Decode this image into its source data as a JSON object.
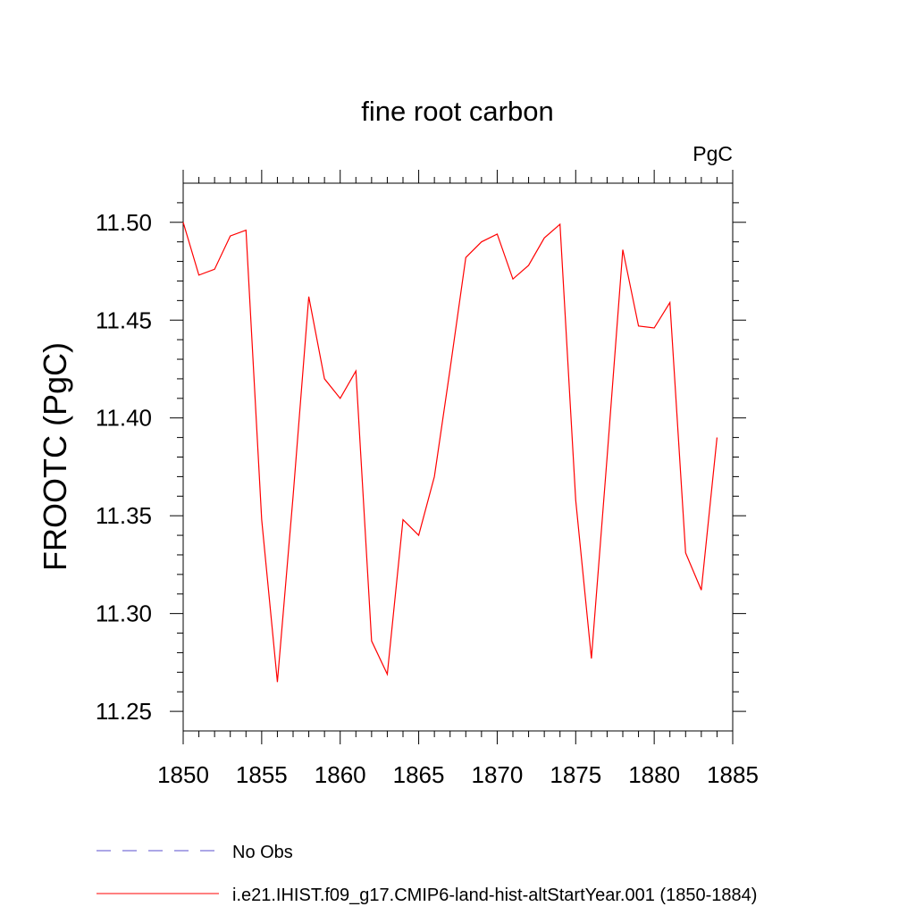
{
  "chart_data": {
    "type": "line",
    "title": "fine root carbon",
    "units_label": "PgC",
    "xlabel": "",
    "ylabel": "FROOTC  (PgC)",
    "xlim": [
      1850,
      1885
    ],
    "ylim": [
      11.24,
      11.52
    ],
    "x_ticks": [
      1850,
      1855,
      1860,
      1865,
      1870,
      1875,
      1880,
      1885
    ],
    "y_ticks": [
      11.25,
      11.3,
      11.35,
      11.4,
      11.45,
      11.5
    ],
    "y_tick_labels": [
      "11.25",
      "11.30",
      "11.35",
      "11.40",
      "11.45",
      "11.50"
    ],
    "grid": false,
    "legend_position": "bottom-left",
    "series": [
      {
        "name": "No Obs",
        "color": "#5a4fcf",
        "dash": "dashed",
        "x": [],
        "values": []
      },
      {
        "name": "i.e21.IHIST.f09_g17.CMIP6-land-hist-altStartYear.001 (1850-1884)",
        "color": "#ff0000",
        "dash": "solid",
        "x": [
          1850,
          1851,
          1852,
          1853,
          1854,
          1855,
          1856,
          1857,
          1858,
          1859,
          1860,
          1861,
          1862,
          1863,
          1864,
          1865,
          1866,
          1867,
          1868,
          1869,
          1870,
          1871,
          1872,
          1873,
          1874,
          1875,
          1876,
          1877,
          1878,
          1879,
          1880,
          1881,
          1882,
          1883,
          1884
        ],
        "values": [
          11.5,
          11.473,
          11.476,
          11.493,
          11.496,
          11.348,
          11.265,
          11.36,
          11.462,
          11.42,
          11.41,
          11.424,
          11.286,
          11.269,
          11.348,
          11.34,
          11.37,
          11.425,
          11.482,
          11.49,
          11.494,
          11.471,
          11.478,
          11.492,
          11.499,
          11.358,
          11.277,
          11.38,
          11.486,
          11.447,
          11.446,
          11.459,
          11.331,
          11.312,
          11.39
        ]
      }
    ]
  }
}
